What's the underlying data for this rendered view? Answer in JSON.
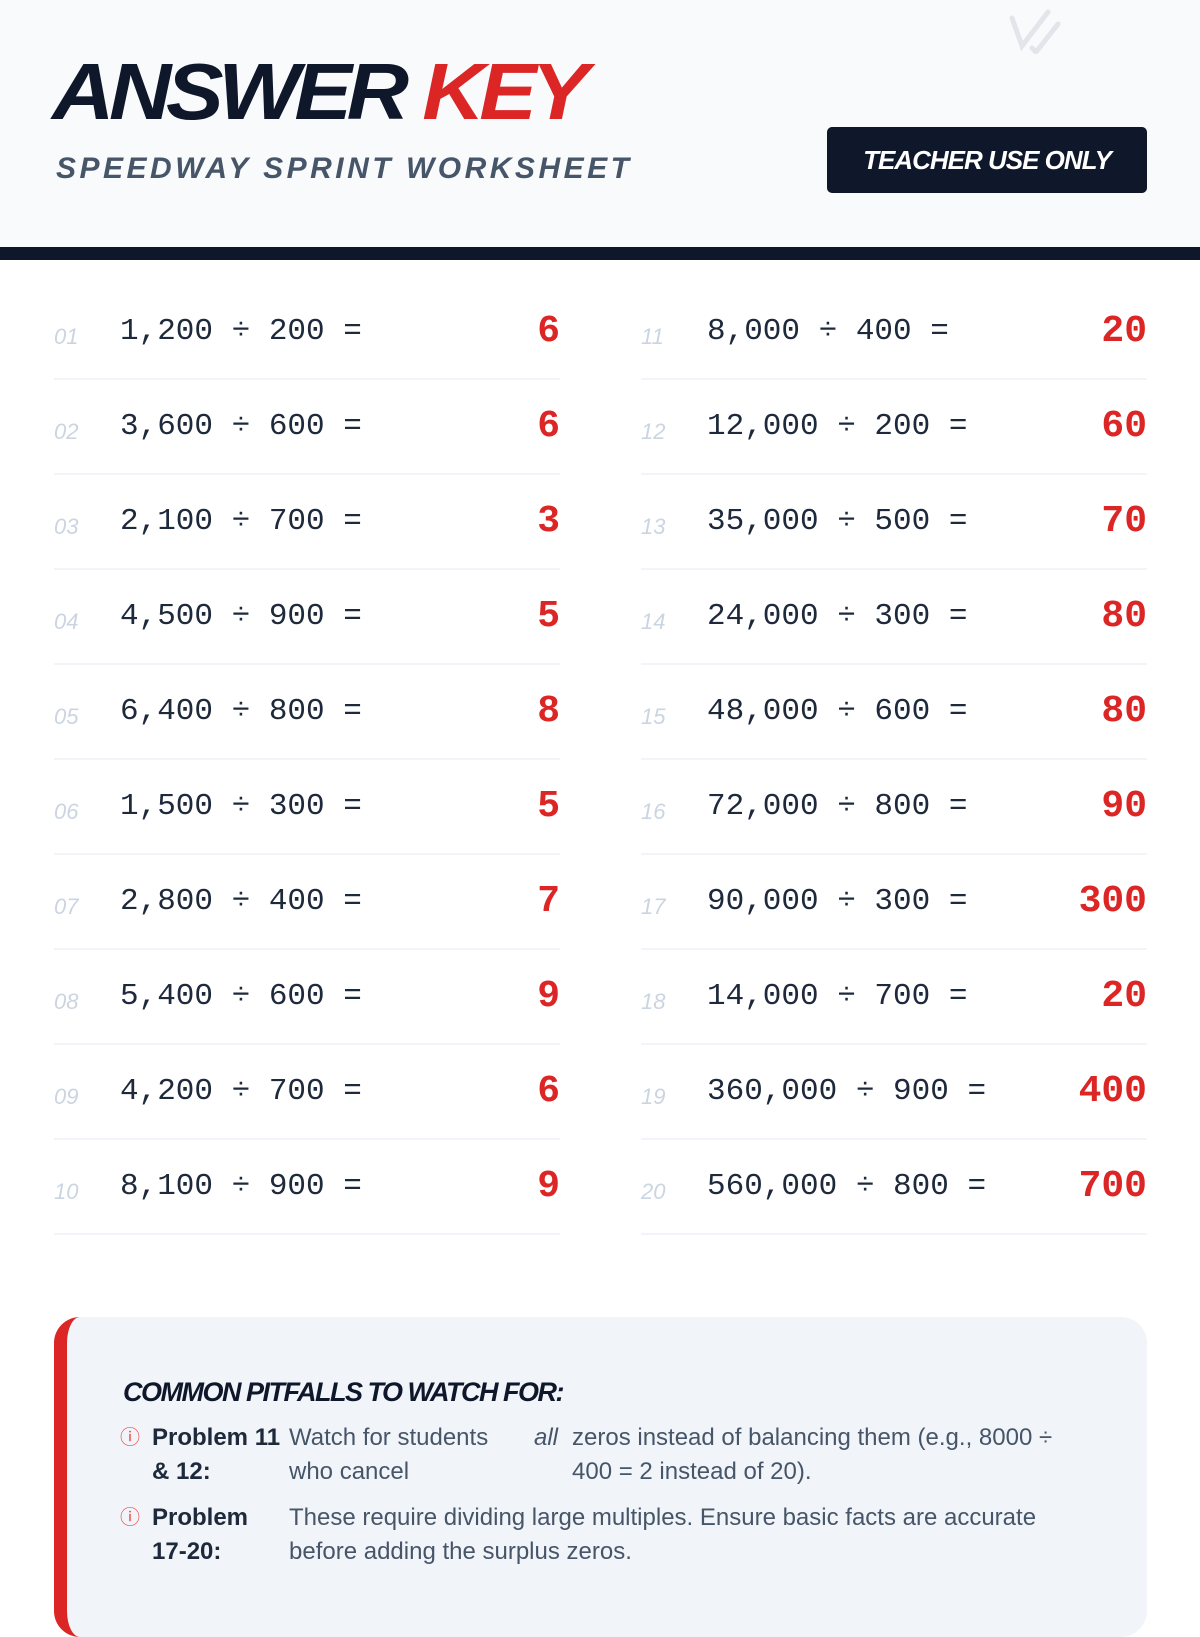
{
  "header": {
    "title_part1": "ANSWER",
    "title_part2": "KEY",
    "subtitle": "SPEEDWAY SPRINT WORKSHEET",
    "badge": "TEACHER USE ONLY",
    "decor_icon": "double-check-icon"
  },
  "colors": {
    "accent": "#dc2626",
    "dark": "#0f172a"
  },
  "problems": [
    {
      "num": "01",
      "expr": "1,200 ÷ 200 =",
      "answer": "6"
    },
    {
      "num": "02",
      "expr": "3,600 ÷ 600 =",
      "answer": "6"
    },
    {
      "num": "03",
      "expr": "2,100 ÷ 700 =",
      "answer": "3"
    },
    {
      "num": "04",
      "expr": "4,500 ÷ 900 =",
      "answer": "5"
    },
    {
      "num": "05",
      "expr": "6,400 ÷ 800 =",
      "answer": "8"
    },
    {
      "num": "06",
      "expr": "1,500 ÷ 300 =",
      "answer": "5"
    },
    {
      "num": "07",
      "expr": "2,800 ÷ 400 =",
      "answer": "7"
    },
    {
      "num": "08",
      "expr": "5,400 ÷ 600 =",
      "answer": "9"
    },
    {
      "num": "09",
      "expr": "4,200 ÷ 700 =",
      "answer": "6"
    },
    {
      "num": "10",
      "expr": "8,100 ÷ 900 =",
      "answer": "9"
    },
    {
      "num": "11",
      "expr": "8,000 ÷ 400 =",
      "answer": "20"
    },
    {
      "num": "12",
      "expr": "12,000 ÷ 200 =",
      "answer": "60"
    },
    {
      "num": "13",
      "expr": "35,000 ÷ 500 =",
      "answer": "70"
    },
    {
      "num": "14",
      "expr": "24,000 ÷ 300 =",
      "answer": "80"
    },
    {
      "num": "15",
      "expr": "48,000 ÷ 600 =",
      "answer": "80"
    },
    {
      "num": "16",
      "expr": "72,000 ÷ 800 =",
      "answer": "90"
    },
    {
      "num": "17",
      "expr": "90,000 ÷ 300 =",
      "answer": "300"
    },
    {
      "num": "18",
      "expr": "14,000 ÷ 700 =",
      "answer": "20"
    },
    {
      "num": "19",
      "expr": "360,000 ÷ 900 =",
      "answer": "400"
    },
    {
      "num": "20",
      "expr": "560,000 ÷ 800 =",
      "answer": "700"
    }
  ],
  "pitfalls": {
    "heading": "COMMON PITFALLS TO WATCH FOR:",
    "items": [
      {
        "label": "Problem 11 & 12:",
        "text1": "Watch for students who cancel",
        "emph": "all",
        "text2": "zeros instead of balancing them (e.g., 8000 ÷ 400 = 2 instead of 20)."
      },
      {
        "label": "Problem 17-20:",
        "text1": "These require dividing large multiples. Ensure basic facts are accurate before adding the surplus zeros."
      }
    ]
  }
}
